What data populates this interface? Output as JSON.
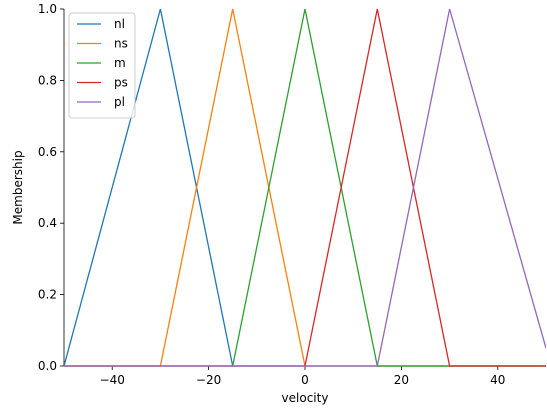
{
  "chart_data": {
    "type": "line",
    "title": "",
    "xlabel": "velocity",
    "ylabel": "Membership",
    "xlim": [
      -50,
      50
    ],
    "ylim": [
      0,
      1
    ],
    "xticks": [
      -40,
      -20,
      0,
      20,
      40
    ],
    "yticks": [
      0.0,
      0.2,
      0.4,
      0.6,
      0.8,
      1.0
    ],
    "xtick_labels": [
      "−40",
      "−20",
      "0",
      "20",
      "40"
    ],
    "ytick_labels": [
      "0.0",
      "0.2",
      "0.4",
      "0.6",
      "0.8",
      "1.0"
    ],
    "grid": false,
    "legend_position": "upper-left",
    "series": [
      {
        "name": "nl",
        "color": "#1f77b4",
        "x": [
          -50,
          -30,
          -15,
          50
        ],
        "y": [
          0,
          1,
          0,
          0
        ]
      },
      {
        "name": "ns",
        "color": "#ff7f0e",
        "x": [
          -50,
          -30,
          -15,
          0,
          50
        ],
        "y": [
          0,
          0,
          1,
          0,
          0
        ]
      },
      {
        "name": "m",
        "color": "#2ca02c",
        "x": [
          -50,
          -15,
          0,
          15,
          50
        ],
        "y": [
          0,
          0,
          1,
          0,
          0
        ]
      },
      {
        "name": "ps",
        "color": "#d62728",
        "x": [
          -50,
          0,
          15,
          30,
          50
        ],
        "y": [
          0,
          0,
          1,
          0,
          0
        ]
      },
      {
        "name": "pl",
        "color": "#9467bd",
        "x": [
          -50,
          15,
          30,
          50
        ],
        "y": [
          0,
          0,
          1,
          0.05
        ]
      }
    ]
  }
}
